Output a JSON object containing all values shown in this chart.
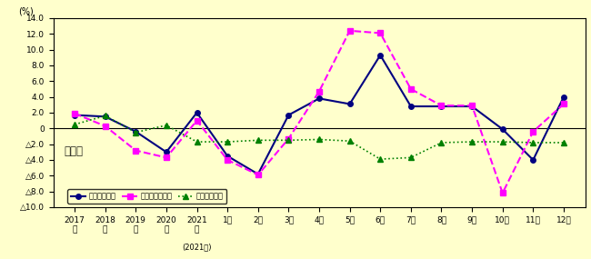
{
  "ylabel_unit": "(%)",
  "background_color": "#FFFFCC",
  "ylim": [
    -10.0,
    14.0
  ],
  "yticks": [
    -10.0,
    -8.0,
    -6.0,
    -4.0,
    -2.0,
    0.0,
    2.0,
    4.0,
    6.0,
    8.0,
    10.0,
    12.0,
    14.0
  ],
  "x_labels_annual": [
    "年",
    "年",
    "年",
    "年",
    "年"
  ],
  "x_labels_annual_nums": [
    "2017",
    "2018",
    "2019",
    "2020",
    "2021"
  ],
  "x_labels_monthly": [
    "1月",
    "2月",
    "3月",
    "4月",
    "5月",
    "6月",
    "7月",
    "8月",
    "9月",
    "10月",
    "11月",
    "12月"
  ],
  "xlabel_sub": "(2021年)",
  "watermark": "製造業",
  "legend_labels": [
    "現金給与総額",
    "総実労働時間数",
    "常用労働者数"
  ],
  "series_wages": [
    1.7,
    1.5,
    -0.4,
    -3.0,
    2.0,
    -3.5,
    -5.8,
    1.7,
    3.8,
    3.1,
    9.3,
    2.8,
    2.8,
    2.8,
    -0.1,
    -4.0,
    4.0
  ],
  "series_hours": [
    1.9,
    0.3,
    -2.8,
    -3.7,
    1.0,
    -4.0,
    -5.9,
    -1.3,
    4.7,
    12.4,
    12.1,
    5.0,
    2.9,
    2.9,
    -8.2,
    -0.4,
    3.1
  ],
  "series_employment": [
    0.5,
    1.6,
    -0.5,
    0.4,
    -1.7,
    -1.7,
    -1.5,
    -1.5,
    -1.4,
    -1.6,
    -3.9,
    -3.7,
    -1.8,
    -1.7,
    -1.7,
    -1.8,
    -1.8
  ],
  "color_wages": "#000080",
  "color_hours": "#FF00FF",
  "color_employment": "#008000"
}
